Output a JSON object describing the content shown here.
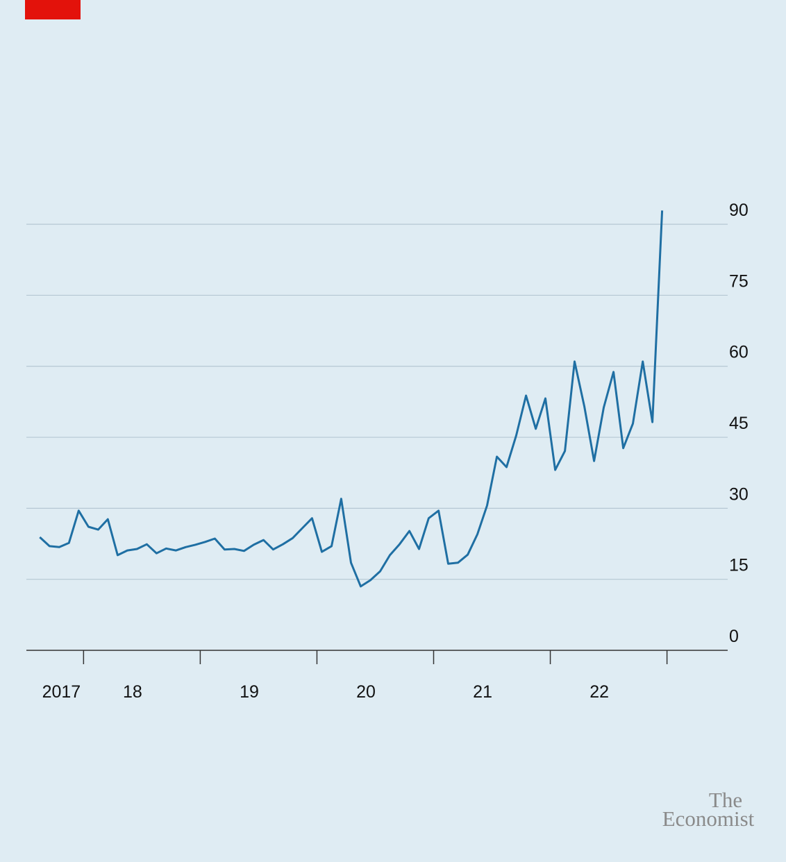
{
  "chart_data": {
    "type": "line",
    "x": [
      2017.625,
      2017.708,
      2017.792,
      2017.875,
      2017.958,
      2018.042,
      2018.125,
      2018.208,
      2018.292,
      2018.375,
      2018.458,
      2018.542,
      2018.625,
      2018.708,
      2018.792,
      2018.875,
      2018.958,
      2019.042,
      2019.125,
      2019.208,
      2019.292,
      2019.375,
      2019.458,
      2019.542,
      2019.625,
      2019.708,
      2019.792,
      2019.875,
      2019.958,
      2020.042,
      2020.125,
      2020.208,
      2020.292,
      2020.375,
      2020.458,
      2020.542,
      2020.625,
      2020.708,
      2020.792,
      2020.875,
      2020.958,
      2021.042,
      2021.125,
      2021.208,
      2021.292,
      2021.375,
      2021.458,
      2021.542,
      2021.625,
      2021.708,
      2021.792,
      2021.875,
      2021.958,
      2022.042,
      2022.125,
      2022.208,
      2022.292,
      2022.375,
      2022.458,
      2022.542,
      2022.625,
      2022.708,
      2022.792,
      2022.875,
      2022.958
    ],
    "series": [
      {
        "color": "#1f6fa3",
        "values": [
          23.9,
          22.0,
          21.8,
          22.7,
          29.5,
          26.1,
          25.5,
          27.7,
          20.1,
          21.1,
          21.4,
          22.4,
          20.5,
          21.5,
          21.1,
          21.8,
          22.3,
          22.9,
          23.6,
          21.3,
          21.4,
          21.0,
          22.3,
          23.3,
          21.3,
          22.4,
          23.7,
          25.8,
          27.9,
          20.8,
          22.0,
          32.0,
          18.5,
          13.5,
          14.8,
          16.7,
          20.1,
          22.4,
          25.2,
          21.4,
          27.9,
          29.5,
          18.3,
          18.5,
          20.2,
          24.5,
          30.6,
          40.9,
          38.7,
          45.4,
          53.8,
          46.8,
          53.2,
          38.1,
          42.1,
          61.0,
          51.5,
          40.0,
          51.3,
          58.8,
          42.7,
          47.9,
          61.0,
          48.2,
          92.9
        ]
      }
    ],
    "xlim": [
      2017.51,
      2023.52
    ],
    "xticks": [
      2018,
      2019,
      2020,
      2021,
      2022,
      2023
    ],
    "xlabels": [
      {
        "value": 2017.81,
        "label": "2017"
      },
      {
        "value": 2018.42,
        "label": "18"
      },
      {
        "value": 2019.42,
        "label": "19"
      },
      {
        "value": 2020.42,
        "label": "20"
      },
      {
        "value": 2021.42,
        "label": "21"
      },
      {
        "value": 2022.42,
        "label": "22"
      }
    ],
    "ylim": [
      0,
      95
    ],
    "yticks": [
      0,
      15,
      30,
      45,
      60,
      75,
      90
    ],
    "grid": true
  },
  "branding": {
    "line1": "The",
    "line2": "Economist"
  }
}
